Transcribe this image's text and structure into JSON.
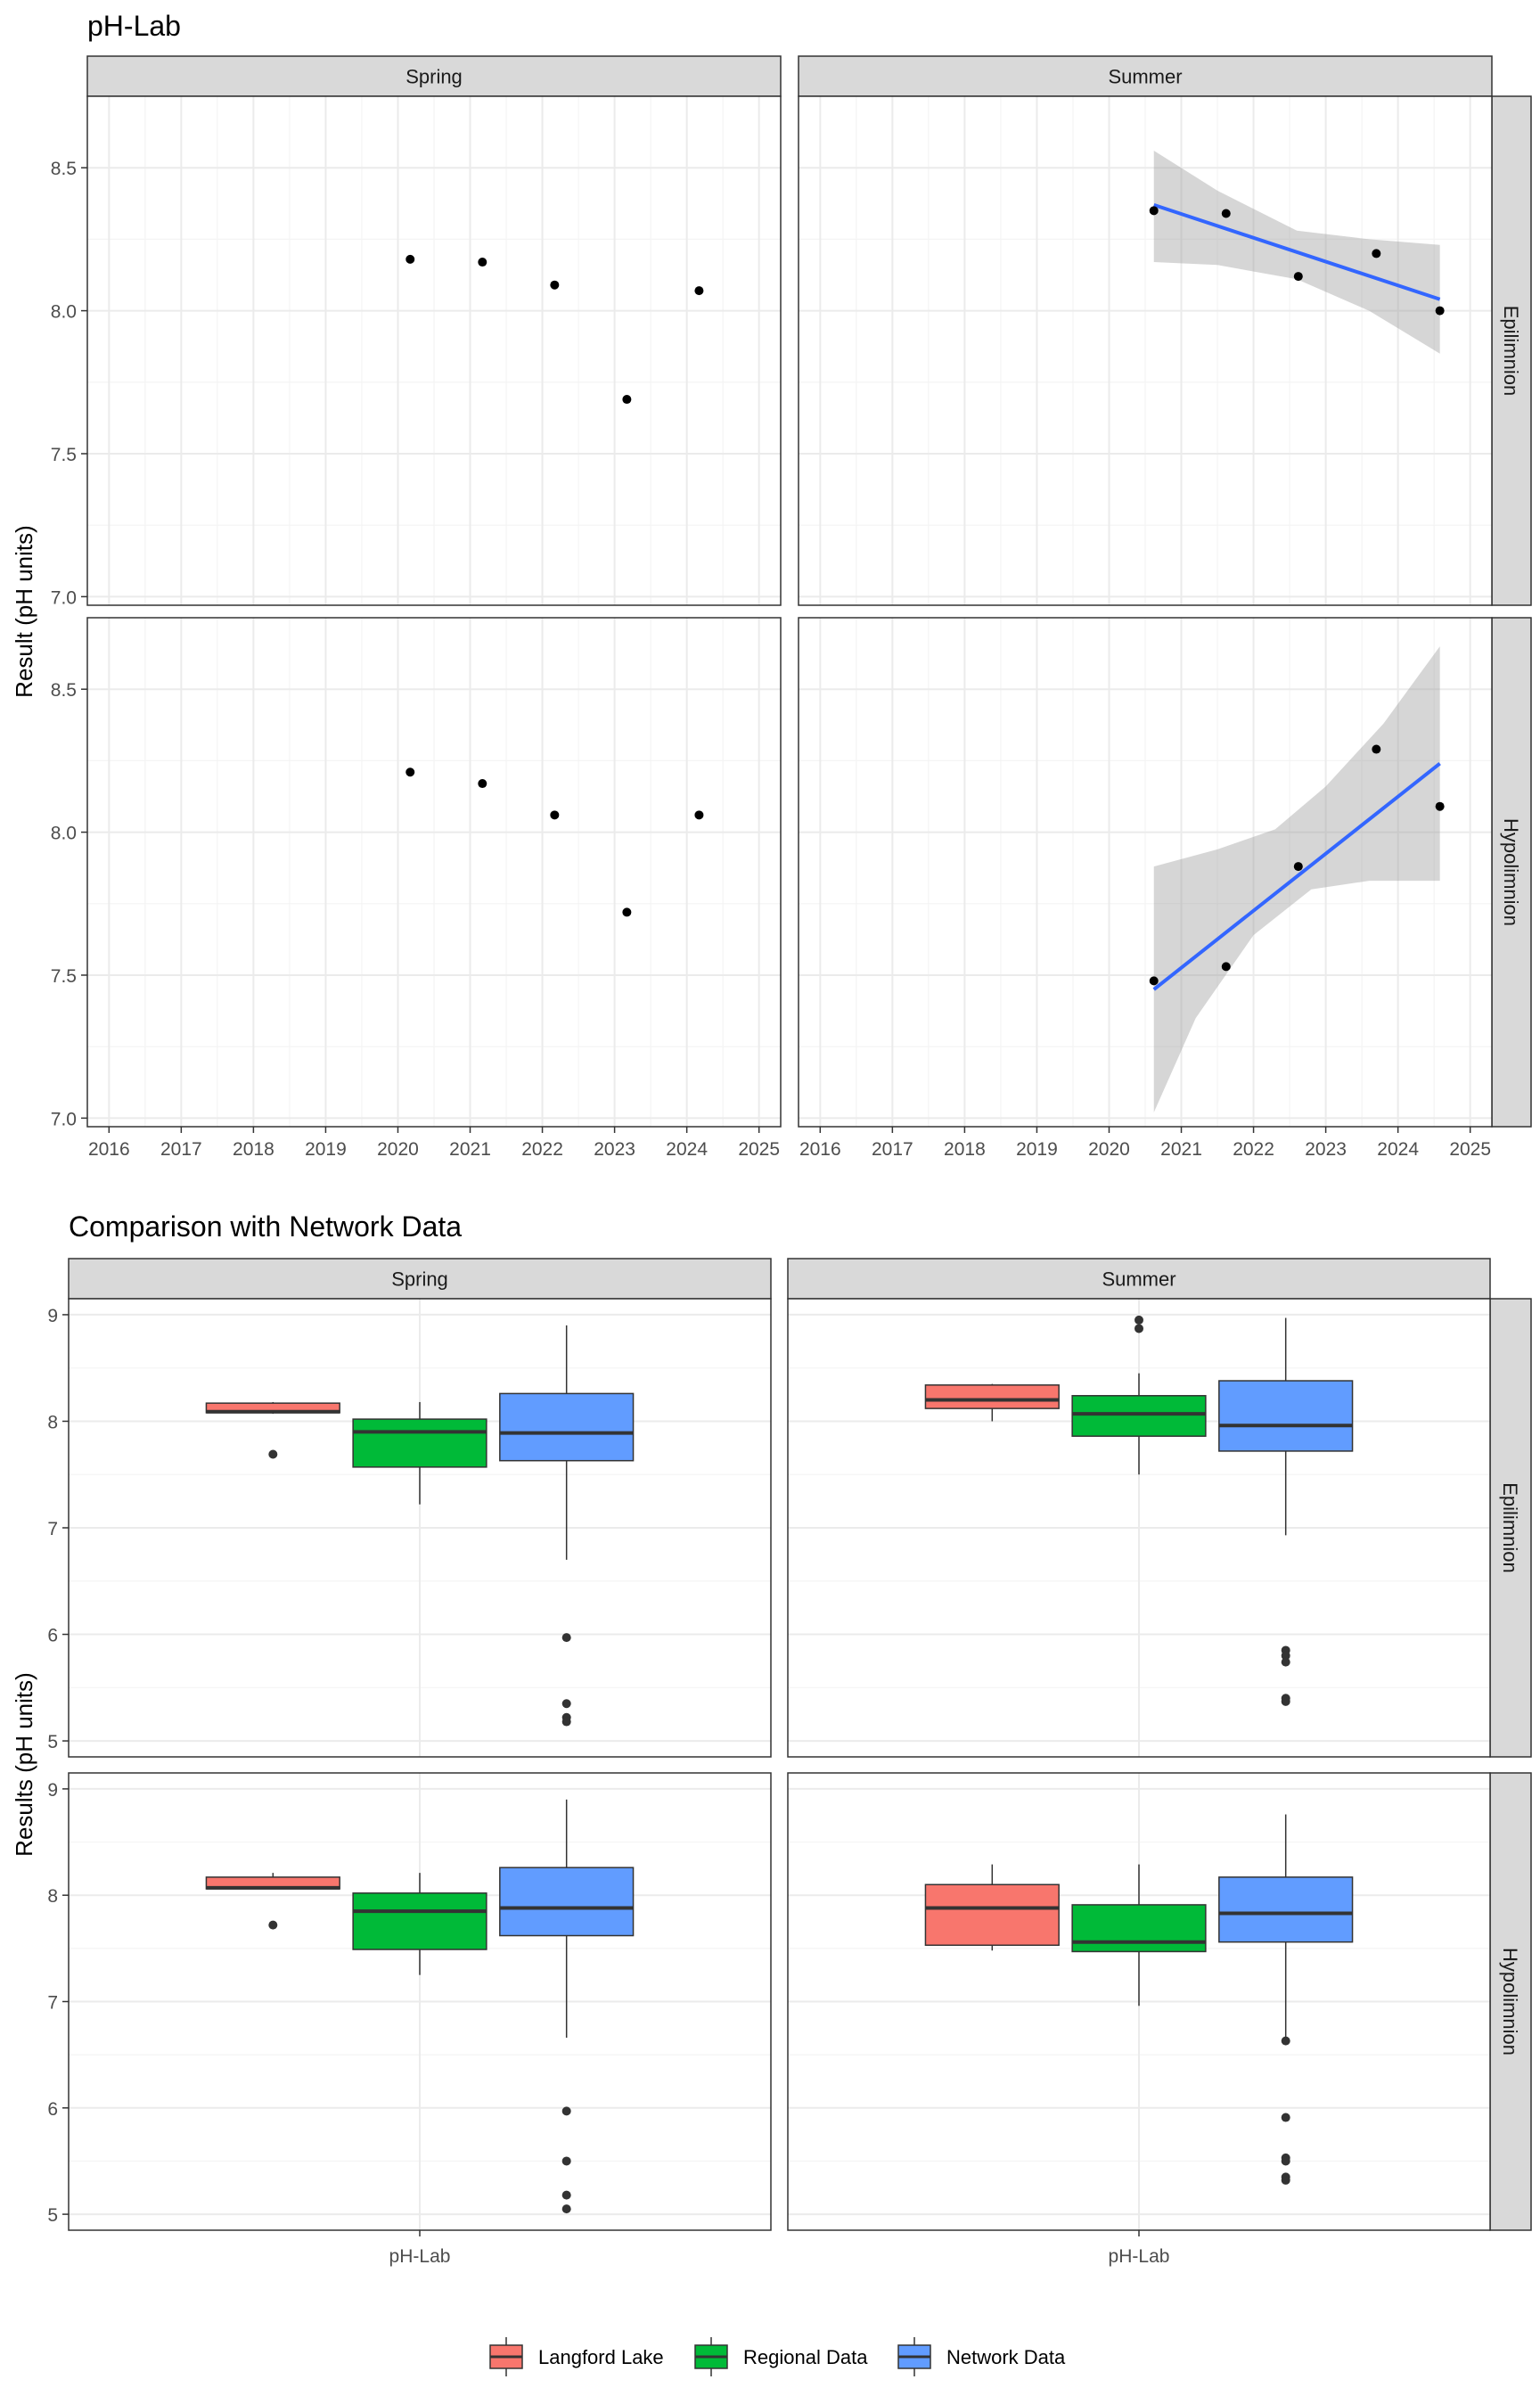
{
  "chart_data": [
    {
      "type": "scatter",
      "title": "pH-Lab",
      "ylabel": "Result (pH units)",
      "xlabel": "",
      "facet_columns": [
        "Spring",
        "Summer"
      ],
      "facet_rows": [
        "Epilimnion",
        "Hypolimnion"
      ],
      "x_ticks": [
        "2016",
        "2017",
        "2018",
        "2019",
        "2020",
        "2021",
        "2022",
        "2023",
        "2024",
        "2025"
      ],
      "y_ticks": [
        "7.0",
        "7.5",
        "8.0",
        "8.5"
      ],
      "xlim": [
        2015.7,
        2025.3
      ],
      "ylim": [
        6.97,
        8.75
      ],
      "grid": true,
      "panels": [
        {
          "column": "Spring",
          "row": "Epilimnion",
          "points": [
            [
              2020.17,
              8.18
            ],
            [
              2021.17,
              8.17
            ],
            [
              2022.17,
              8.09
            ],
            [
              2023.17,
              7.69
            ],
            [
              2024.17,
              8.07
            ]
          ]
        },
        {
          "column": "Summer",
          "row": "Epilimnion",
          "points": [
            [
              2020.62,
              8.35
            ],
            [
              2021.62,
              8.34
            ],
            [
              2022.62,
              8.12
            ],
            [
              2023.7,
              8.2
            ],
            [
              2024.58,
              8.0
            ]
          ],
          "trend": {
            "x": [
              2020.62,
              2024.58
            ],
            "y": [
              8.37,
              8.04
            ]
          },
          "band_upper": [
            [
              2020.62,
              8.56
            ],
            [
              2021.5,
              8.42
            ],
            [
              2022.6,
              8.28
            ],
            [
              2023.6,
              8.25
            ],
            [
              2024.58,
              8.23
            ]
          ],
          "band_lower": [
            [
              2020.62,
              8.17
            ],
            [
              2021.5,
              8.16
            ],
            [
              2022.6,
              8.11
            ],
            [
              2023.6,
              8.0
            ],
            [
              2024.58,
              7.85
            ]
          ]
        },
        {
          "column": "Spring",
          "row": "Hypolimnion",
          "points": [
            [
              2020.17,
              8.21
            ],
            [
              2021.17,
              8.17
            ],
            [
              2022.17,
              8.06
            ],
            [
              2023.17,
              7.72
            ],
            [
              2024.17,
              8.06
            ]
          ]
        },
        {
          "column": "Summer",
          "row": "Hypolimnion",
          "points": [
            [
              2020.62,
              7.48
            ],
            [
              2021.62,
              7.53
            ],
            [
              2022.62,
              7.88
            ],
            [
              2023.7,
              8.29
            ],
            [
              2024.58,
              8.09
            ]
          ],
          "trend": {
            "x": [
              2020.62,
              2024.58
            ],
            "y": [
              7.45,
              8.24
            ]
          },
          "band_upper": [
            [
              2020.62,
              7.88
            ],
            [
              2021.5,
              7.94
            ],
            [
              2022.3,
              8.01
            ],
            [
              2023.0,
              8.16
            ],
            [
              2023.8,
              8.38
            ],
            [
              2024.58,
              8.65
            ]
          ],
          "band_lower": [
            [
              2020.62,
              7.02
            ],
            [
              2021.2,
              7.35
            ],
            [
              2022.0,
              7.64
            ],
            [
              2022.8,
              7.8
            ],
            [
              2023.6,
              7.83
            ],
            [
              2024.58,
              7.83
            ]
          ]
        }
      ]
    },
    {
      "type": "box",
      "title": "Comparison with Network Data",
      "ylabel": "Results (pH units)",
      "xlabel": "",
      "facet_columns": [
        "Spring",
        "Summer"
      ],
      "facet_rows": [
        "Epilimnion",
        "Hypolimnion"
      ],
      "categories": [
        "pH-Lab"
      ],
      "y_ticks": [
        "5",
        "6",
        "7",
        "8",
        "9"
      ],
      "ylim": [
        4.85,
        9.15
      ],
      "grid": true,
      "legend_position": "bottom",
      "series": [
        {
          "name": "Langford Lake",
          "color": "#F8766D"
        },
        {
          "name": "Regional Data",
          "color": "#00BA38"
        },
        {
          "name": "Network Data",
          "color": "#619CFF"
        }
      ],
      "panels": [
        {
          "column": "Spring",
          "row": "Epilimnion",
          "boxes": [
            {
              "series": "Langford Lake",
              "min": 8.07,
              "q1": 8.08,
              "median": 8.09,
              "q3": 8.17,
              "max": 8.18,
              "outliers": [
                7.69
              ]
            },
            {
              "series": "Regional Data",
              "min": 7.22,
              "q1": 7.57,
              "median": 7.9,
              "q3": 8.02,
              "max": 8.18,
              "outliers": []
            },
            {
              "series": "Network Data",
              "min": 6.7,
              "q1": 7.63,
              "median": 7.89,
              "q3": 8.26,
              "max": 8.9,
              "outliers": [
                5.97,
                5.35,
                5.22,
                5.18
              ]
            }
          ]
        },
        {
          "column": "Summer",
          "row": "Epilimnion",
          "boxes": [
            {
              "series": "Langford Lake",
              "min": 8.0,
              "q1": 8.12,
              "median": 8.2,
              "q3": 8.34,
              "max": 8.35,
              "outliers": []
            },
            {
              "series": "Regional Data",
              "min": 7.5,
              "q1": 7.86,
              "median": 8.07,
              "q3": 8.24,
              "max": 8.45,
              "outliers": [
                8.95,
                8.87
              ]
            },
            {
              "series": "Network Data",
              "min": 6.93,
              "q1": 7.72,
              "median": 7.96,
              "q3": 8.38,
              "max": 8.97,
              "outliers": [
                5.85,
                5.8,
                5.74,
                5.4,
                5.37
              ]
            }
          ]
        },
        {
          "column": "Spring",
          "row": "Hypolimnion",
          "boxes": [
            {
              "series": "Langford Lake",
              "min": 8.06,
              "q1": 8.06,
              "median": 8.07,
              "q3": 8.17,
              "max": 8.21,
              "outliers": [
                7.72
              ]
            },
            {
              "series": "Regional Data",
              "min": 7.25,
              "q1": 7.49,
              "median": 7.85,
              "q3": 8.02,
              "max": 8.21,
              "outliers": []
            },
            {
              "series": "Network Data",
              "min": 6.66,
              "q1": 7.62,
              "median": 7.88,
              "q3": 8.26,
              "max": 8.9,
              "outliers": [
                5.97,
                5.5,
                5.18,
                5.05
              ]
            }
          ]
        },
        {
          "column": "Summer",
          "row": "Hypolimnion",
          "boxes": [
            {
              "series": "Langford Lake",
              "min": 7.48,
              "q1": 7.53,
              "median": 7.88,
              "q3": 8.1,
              "max": 8.29,
              "outliers": []
            },
            {
              "series": "Regional Data",
              "min": 6.96,
              "q1": 7.47,
              "median": 7.56,
              "q3": 7.91,
              "max": 8.29,
              "outliers": []
            },
            {
              "series": "Network Data",
              "min": 6.66,
              "q1": 7.56,
              "median": 7.83,
              "q3": 8.17,
              "max": 8.76,
              "outliers": [
                6.63,
                5.91,
                5.53,
                5.5,
                5.35,
                5.32
              ]
            }
          ]
        }
      ]
    }
  ]
}
